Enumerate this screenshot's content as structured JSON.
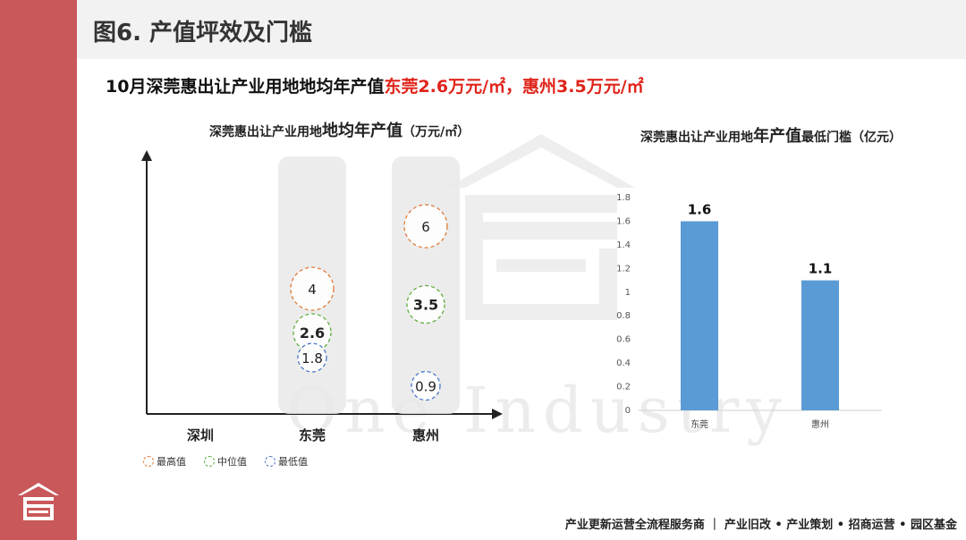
{
  "page_title": "图6. 产值坪效及门槛",
  "headline": {
    "prefix": "10月深莞惠出让产业用地地均年产值",
    "highlight": "东莞2.6万元/㎡，惠州3.5万元/㎡"
  },
  "watermark": "One Industry",
  "footer": "产业更新运营全流程服务商 ｜ 产业旧改 • 产业策划 • 招商运营 • 园区基金",
  "colors": {
    "sidebar": "#c9585a",
    "max": "#e07b39",
    "median": "#5fae3f",
    "min": "#4a78c8",
    "bar": "#5b9bd5"
  },
  "legend": [
    {
      "label": "最高值",
      "color": "#e07b39"
    },
    {
      "label": "中位值",
      "color": "#5fae3f"
    },
    {
      "label": "最低值",
      "color": "#4a78c8"
    }
  ],
  "left_chart_title": {
    "part1": "深莞惠出让产业用地",
    "part2": "地均年产值",
    "part3": "（万元/㎡）"
  },
  "right_chart_title": {
    "part1": "深莞惠出让产业用地",
    "part2": "年产值",
    "part3": "最低门槛（亿元）"
  },
  "chart_data": [
    {
      "type": "scatter",
      "categories": [
        "深圳",
        "东莞",
        "惠州"
      ],
      "series": [
        {
          "name": "最高值",
          "values": [
            null,
            4,
            6
          ]
        },
        {
          "name": "中位值",
          "values": [
            null,
            2.6,
            3.5
          ]
        },
        {
          "name": "最低值",
          "values": [
            null,
            1.8,
            0.9
          ]
        }
      ],
      "labels": {
        "东莞": {
          "max": "4",
          "median": "2.6",
          "min": "1.8"
        },
        "惠州": {
          "max": "6",
          "median": "3.5",
          "min": "0.9"
        }
      }
    },
    {
      "type": "bar",
      "categories": [
        "东莞",
        "惠州"
      ],
      "values": [
        1.6,
        1.1
      ],
      "value_labels": [
        "1.6",
        "1.1"
      ],
      "ylim": [
        0,
        1.8
      ],
      "yticks": [
        "0",
        "0.2",
        "0.4",
        "0.6",
        "0.8",
        "1",
        "1.2",
        "1.4",
        "1.6",
        "1.8"
      ]
    }
  ]
}
